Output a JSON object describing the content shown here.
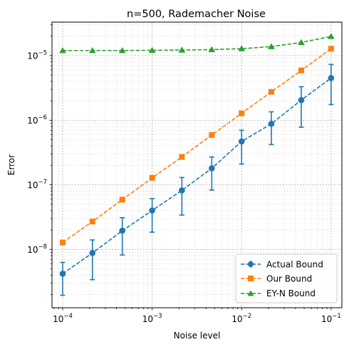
{
  "chart_data": {
    "type": "line",
    "title": "n=500, Rademacher Noise",
    "xlabel": "Noise level",
    "ylabel": "Error",
    "xscale": "log",
    "yscale": "log",
    "xlim": [
      7.6e-05,
      0.132
    ],
    "ylim": [
      1.25e-09,
      3.3e-05
    ],
    "grid": true,
    "legend_position": "lower-right",
    "x": [
      0.0001,
      0.000215,
      0.000464,
      0.001,
      0.00215,
      0.00464,
      0.01,
      0.0215,
      0.0464,
      0.1
    ],
    "x_ticks": [
      {
        "value": 0.0001,
        "base": "10",
        "exp": "−4"
      },
      {
        "value": 0.001,
        "base": "10",
        "exp": "−3"
      },
      {
        "value": 0.01,
        "base": "10",
        "exp": "−2"
      },
      {
        "value": 0.1,
        "base": "10",
        "exp": "−1"
      }
    ],
    "y_ticks": [
      {
        "value": 1e-08,
        "base": "10",
        "exp": "−8"
      },
      {
        "value": 1e-07,
        "base": "10",
        "exp": "−7"
      },
      {
        "value": 1e-06,
        "base": "10",
        "exp": "−6"
      },
      {
        "value": 1e-05,
        "base": "10",
        "exp": "−5"
      }
    ],
    "series": [
      {
        "name": "Actual Bound",
        "color": "#1f77b4",
        "marker": "circle",
        "values": [
          4.2e-09,
          8.8e-09,
          1.95e-08,
          4e-08,
          8.2e-08,
          1.8e-07,
          4.7e-07,
          8.8e-07,
          2.05e-06,
          4.5e-06
        ],
        "err_low": [
          1.95e-09,
          3.4e-09,
          8.2e-09,
          1.85e-08,
          3.4e-08,
          8.3e-08,
          2.1e-07,
          4.2e-07,
          7.8e-07,
          1.75e-06
        ],
        "err_high": [
          6.3e-09,
          1.4e-08,
          3.1e-08,
          6.1e-08,
          1.3e-07,
          2.7e-07,
          7e-07,
          1.35e-06,
          3.3e-06,
          7.3e-06
        ]
      },
      {
        "name": "Our Bound",
        "color": "#ff7f0e",
        "marker": "square",
        "values": [
          1.28e-08,
          2.7e-08,
          5.9e-08,
          1.28e-07,
          2.7e-07,
          5.9e-07,
          1.28e-06,
          2.75e-06,
          5.9e-06,
          1.28e-05
        ]
      },
      {
        "name": "EY-N Bound",
        "color": "#2ca02c",
        "marker": "triangle",
        "values": [
          1.2e-05,
          1.2e-05,
          1.2e-05,
          1.21e-05,
          1.22e-05,
          1.24e-05,
          1.28e-05,
          1.38e-05,
          1.6e-05,
          1.98e-05
        ]
      }
    ]
  }
}
